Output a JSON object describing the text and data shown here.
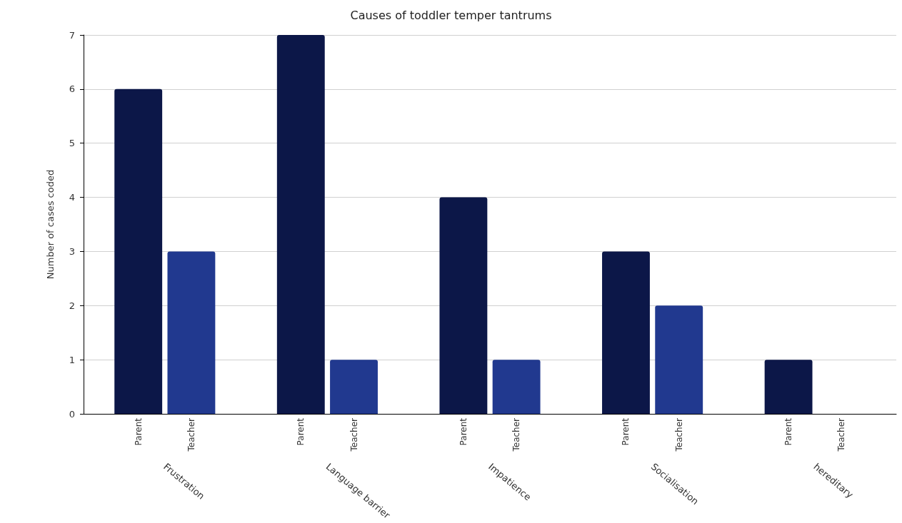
{
  "chart_data": {
    "type": "bar",
    "title": "Causes of toddler temper tantrums",
    "ylabel": "Number of cases coded",
    "categories": [
      "Frustration",
      "Language barrier",
      "Impatience",
      "Socialisation",
      "hereditary"
    ],
    "series": [
      {
        "name": "Parent",
        "color": "#0c1748",
        "values": [
          6,
          7,
          4,
          3,
          1
        ]
      },
      {
        "name": "Teacher",
        "color": "#21398f",
        "values": [
          3,
          1,
          1,
          2,
          0
        ]
      }
    ],
    "ylim": [
      0,
      7
    ],
    "yticks": [
      0,
      1,
      2,
      3,
      4,
      5,
      6,
      7
    ],
    "grid": "y",
    "legend": false
  }
}
